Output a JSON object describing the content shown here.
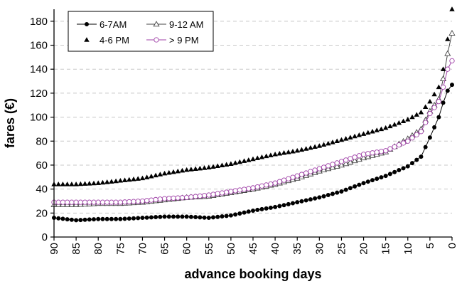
{
  "chart_data": {
    "type": "line",
    "xlabel": "advance booking days",
    "ylabel": "fares (€)",
    "xlim": [
      90,
      0
    ],
    "ylim": [
      0,
      190
    ],
    "x_ticks": [
      90,
      85,
      80,
      75,
      70,
      65,
      60,
      55,
      50,
      45,
      40,
      35,
      30,
      25,
      20,
      15,
      10,
      5,
      0
    ],
    "y_ticks": [
      0,
      20,
      40,
      60,
      80,
      100,
      120,
      140,
      160,
      180
    ],
    "grid": "horizontal dashed",
    "legend_position": "top-left",
    "x": [
      90,
      85,
      80,
      75,
      70,
      65,
      60,
      55,
      50,
      45,
      40,
      35,
      30,
      25,
      20,
      15,
      10,
      7,
      5,
      3,
      2,
      1,
      0
    ],
    "series": [
      {
        "name": "6-7AM",
        "color": "#000000",
        "marker": "filled-circle",
        "values": [
          16,
          14,
          15,
          15,
          16,
          17,
          17,
          16,
          18,
          22,
          25,
          29,
          33,
          38,
          45,
          51,
          59,
          67,
          83,
          100,
          112,
          122,
          127
        ]
      },
      {
        "name": "9-12 AM",
        "color": "#444444",
        "marker": "open-triangle",
        "values": [
          27,
          27,
          28,
          28,
          29,
          31,
          33,
          34,
          37,
          40,
          44,
          49,
          55,
          60,
          66,
          71,
          82,
          90,
          105,
          115,
          132,
          153,
          170
        ]
      },
      {
        "name": "4-6 PM",
        "color": "#000000",
        "marker": "filled-triangle",
        "values": [
          44,
          44,
          45,
          47,
          49,
          53,
          56,
          58,
          61,
          65,
          69,
          72,
          76,
          81,
          86,
          91,
          98,
          104,
          113,
          125,
          140,
          165,
          190
        ]
      },
      {
        "name": "> 9 PM",
        "color": "#a043a8",
        "marker": "open-circle",
        "values": [
          29,
          29,
          29,
          29,
          30,
          32,
          33,
          35,
          38,
          41,
          45,
          51,
          57,
          63,
          69,
          72,
          80,
          88,
          103,
          113,
          125,
          140,
          147
        ]
      }
    ]
  }
}
